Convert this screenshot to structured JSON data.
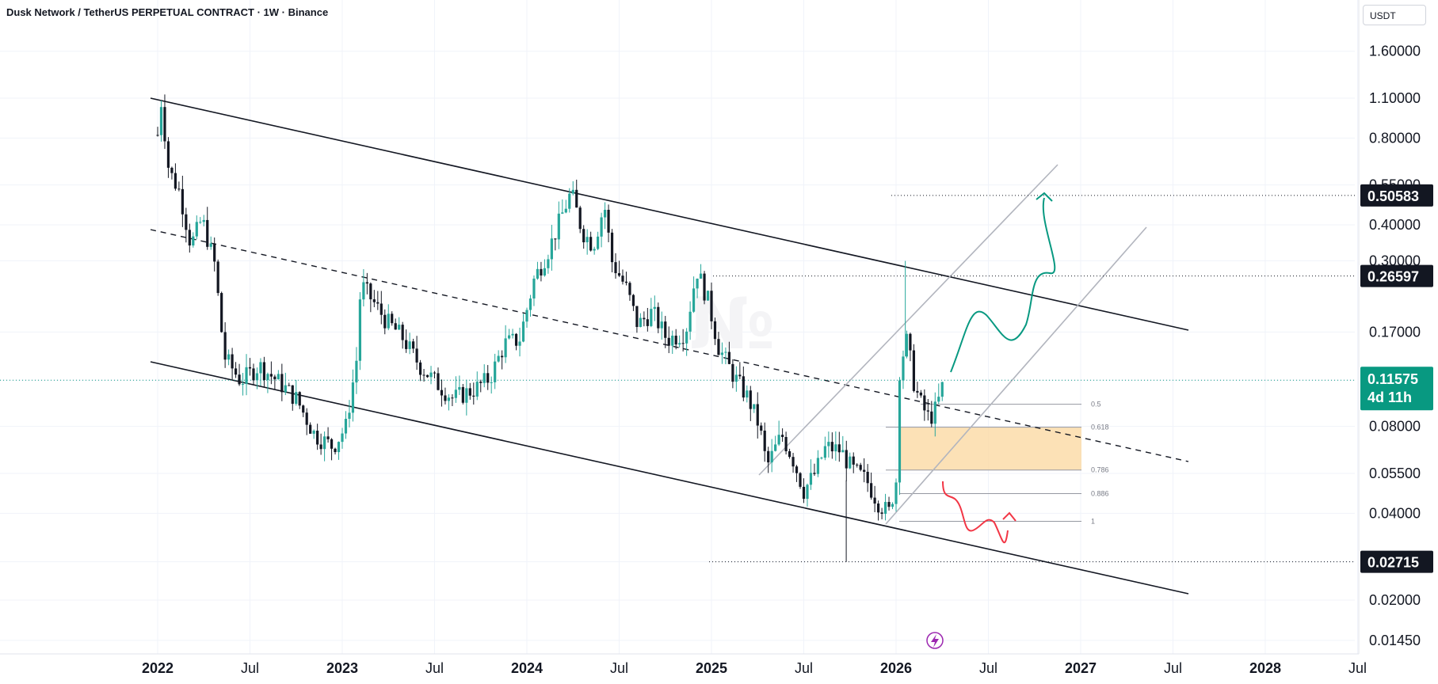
{
  "header": {
    "symbol_title": "Dusk Network / TetherUS PERPETUAL CONTRACT · 1W · Binance",
    "currency_label": "USDT"
  },
  "colors": {
    "up": "#26a69a",
    "down": "#131722",
    "teal_arrow": "#089981",
    "red_arrow": "#f23645",
    "zone": "#fbd9a4",
    "fib_line": "#9598a1",
    "last_price_bg": "#089981",
    "level_label_bg": "#131722"
  },
  "icons": {
    "event": "lightning-icon"
  },
  "chart_data": {
    "type": "candlestick",
    "scale": "log",
    "x_ticks": [
      "2022",
      "Jul",
      "2023",
      "Jul",
      "2024",
      "Jul",
      "2025",
      "Jul",
      "2026",
      "Jul",
      "2027",
      "Jul",
      "2028",
      "Jul"
    ],
    "y_ticks": [
      "1.60000",
      "1.10000",
      "0.80000",
      "0.55000",
      "0.40000",
      "0.30000",
      "0.17000",
      "0.11575",
      "0.08000",
      "0.05500",
      "0.04000",
      "0.02715",
      "0.02000",
      "0.01450"
    ],
    "ylim": [
      0.0137,
      2.0
    ],
    "last_price": {
      "value": "0.11575",
      "countdown": "4d 11h"
    },
    "price_labels": [
      {
        "value": "0.50583",
        "price": 0.50583
      },
      {
        "value": "0.26597",
        "price": 0.26597
      },
      {
        "value": "0.02715",
        "price": 0.02715
      }
    ],
    "fib_levels": [
      {
        "label": "0.5",
        "price": 0.0955
      },
      {
        "label": "0.618",
        "price": 0.0795
      },
      {
        "label": "0.786",
        "price": 0.0565
      },
      {
        "label": "0.886",
        "price": 0.0468
      },
      {
        "label": "1",
        "price": 0.0375
      }
    ],
    "series_close_path": [
      {
        "t": 2022.0,
        "v": 0.82
      },
      {
        "t": 2022.02,
        "v": 1.08
      },
      {
        "t": 2022.06,
        "v": 0.62
      },
      {
        "t": 2022.12,
        "v": 0.52
      },
      {
        "t": 2022.18,
        "v": 0.34
      },
      {
        "t": 2022.24,
        "v": 0.42
      },
      {
        "t": 2022.31,
        "v": 0.29
      },
      {
        "t": 2022.36,
        "v": 0.14
      },
      {
        "t": 2022.45,
        "v": 0.115
      },
      {
        "t": 2022.55,
        "v": 0.13
      },
      {
        "t": 2022.65,
        "v": 0.115
      },
      {
        "t": 2022.75,
        "v": 0.1
      },
      {
        "t": 2022.85,
        "v": 0.075
      },
      {
        "t": 2022.95,
        "v": 0.068
      },
      {
        "t": 2023.02,
        "v": 0.08
      },
      {
        "t": 2023.08,
        "v": 0.14
      },
      {
        "t": 2023.1,
        "v": 0.25
      },
      {
        "t": 2023.16,
        "v": 0.22
      },
      {
        "t": 2023.24,
        "v": 0.185
      },
      {
        "t": 2023.32,
        "v": 0.165
      },
      {
        "t": 2023.42,
        "v": 0.13
      },
      {
        "t": 2023.5,
        "v": 0.115
      },
      {
        "t": 2023.6,
        "v": 0.1
      },
      {
        "t": 2023.72,
        "v": 0.108
      },
      {
        "t": 2023.8,
        "v": 0.118
      },
      {
        "t": 2023.88,
        "v": 0.155
      },
      {
        "t": 2023.96,
        "v": 0.16
      },
      {
        "t": 2024.04,
        "v": 0.26
      },
      {
        "t": 2024.12,
        "v": 0.33
      },
      {
        "t": 2024.2,
        "v": 0.45
      },
      {
        "t": 2024.24,
        "v": 0.52
      },
      {
        "t": 2024.3,
        "v": 0.38
      },
      {
        "t": 2024.36,
        "v": 0.34
      },
      {
        "t": 2024.42,
        "v": 0.47
      },
      {
        "t": 2024.46,
        "v": 0.3
      },
      {
        "t": 2024.54,
        "v": 0.24
      },
      {
        "t": 2024.6,
        "v": 0.18
      },
      {
        "t": 2024.68,
        "v": 0.2
      },
      {
        "t": 2024.76,
        "v": 0.16
      },
      {
        "t": 2024.86,
        "v": 0.17
      },
      {
        "t": 2024.92,
        "v": 0.28
      },
      {
        "t": 2024.98,
        "v": 0.22
      },
      {
        "t": 2025.04,
        "v": 0.15
      },
      {
        "t": 2025.12,
        "v": 0.12
      },
      {
        "t": 2025.2,
        "v": 0.1
      },
      {
        "t": 2025.26,
        "v": 0.08
      },
      {
        "t": 2025.3,
        "v": 0.058
      },
      {
        "t": 2025.38,
        "v": 0.075
      },
      {
        "t": 2025.44,
        "v": 0.062
      },
      {
        "t": 2025.5,
        "v": 0.048
      },
      {
        "t": 2025.56,
        "v": 0.055
      },
      {
        "t": 2025.62,
        "v": 0.068
      },
      {
        "t": 2025.7,
        "v": 0.066
      },
      {
        "t": 2025.76,
        "v": 0.057
      },
      {
        "t": 2025.84,
        "v": 0.052
      },
      {
        "t": 2025.9,
        "v": 0.044
      },
      {
        "t": 2025.96,
        "v": 0.04
      },
      {
        "t": 2026.0,
        "v": 0.052
      },
      {
        "t": 2026.02,
        "v": 0.13
      },
      {
        "t": 2026.06,
        "v": 0.16
      },
      {
        "t": 2026.1,
        "v": 0.11
      },
      {
        "t": 2026.14,
        "v": 0.094
      },
      {
        "t": 2026.18,
        "v": 0.085
      },
      {
        "t": 2026.22,
        "v": 0.093
      },
      {
        "t": 2026.26,
        "v": 0.11575
      }
    ]
  }
}
